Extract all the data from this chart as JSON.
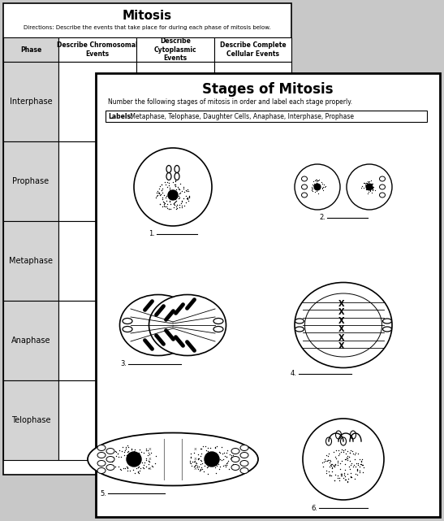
{
  "bg_color": "#c8c8c8",
  "page1_title": "Mitosis",
  "page1_directions": "Directions: Describe the events that take place for during each phase of mitosis below.",
  "table_headers": [
    "Phase",
    "Describe Chromosomal\nEvents",
    "Describe\nCytoplasmic\nEvents",
    "Describe Complete\nCellular Events"
  ],
  "table_rows": [
    "Interphase",
    "Prophase",
    "Metaphase",
    "Anaphase",
    "Telophase"
  ],
  "page2_title": "Stages of Mitosis",
  "page2_directions": "Number the following stages of mitosis in order and label each stage properly.",
  "page2_labels_bold": "Labels:",
  "page2_labels_text": " Metaphase, Telophase, Daughter Cells, Anaphase, Interphase, Prophase",
  "figure_labels": [
    "1.",
    "2.",
    "3.",
    "4.",
    "5.",
    "6."
  ],
  "white": "#ffffff",
  "black": "#000000",
  "gray_table": "#d4d4d4"
}
